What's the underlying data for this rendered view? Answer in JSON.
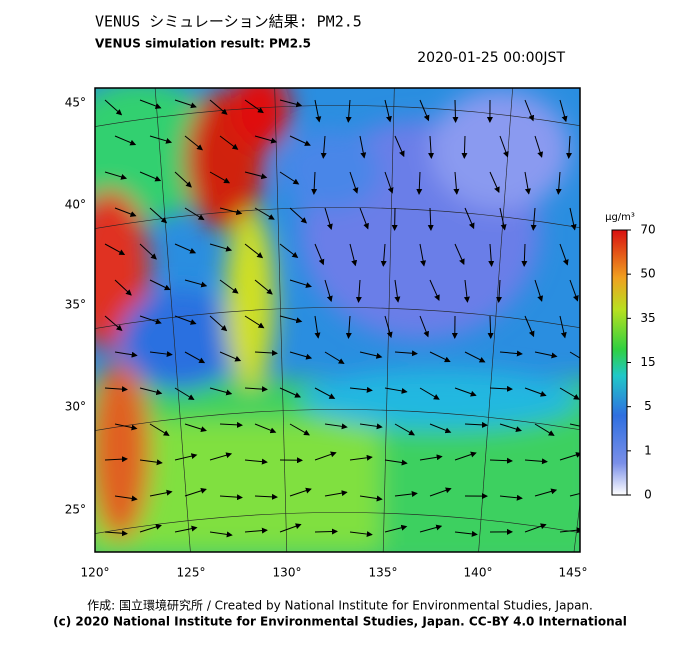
{
  "header": {
    "title": "VENUS シミュレーション結果: PM2.5",
    "subtitle": "VENUS simulation result: PM2.5",
    "timestamp": "2020-01-25 00:00JST"
  },
  "map": {
    "lat_labels": [
      "45°",
      "40°",
      "35°",
      "30°",
      "25°"
    ],
    "lon_labels": [
      "120°",
      "125°",
      "130°",
      "135°",
      "140°",
      "145°"
    ]
  },
  "colorbar": {
    "unit": "μg/m³",
    "ticks": [
      "70",
      "50",
      "35",
      "15",
      "5",
      "1",
      "0"
    ]
  },
  "footer": {
    "credit": "作成: 国立環境研究所 / Created by National Institute for Environmental Studies, Japan.",
    "license": "(c) 2020 National Institute for Environmental Studies, Japan. CC-BY 4.0 International"
  }
}
